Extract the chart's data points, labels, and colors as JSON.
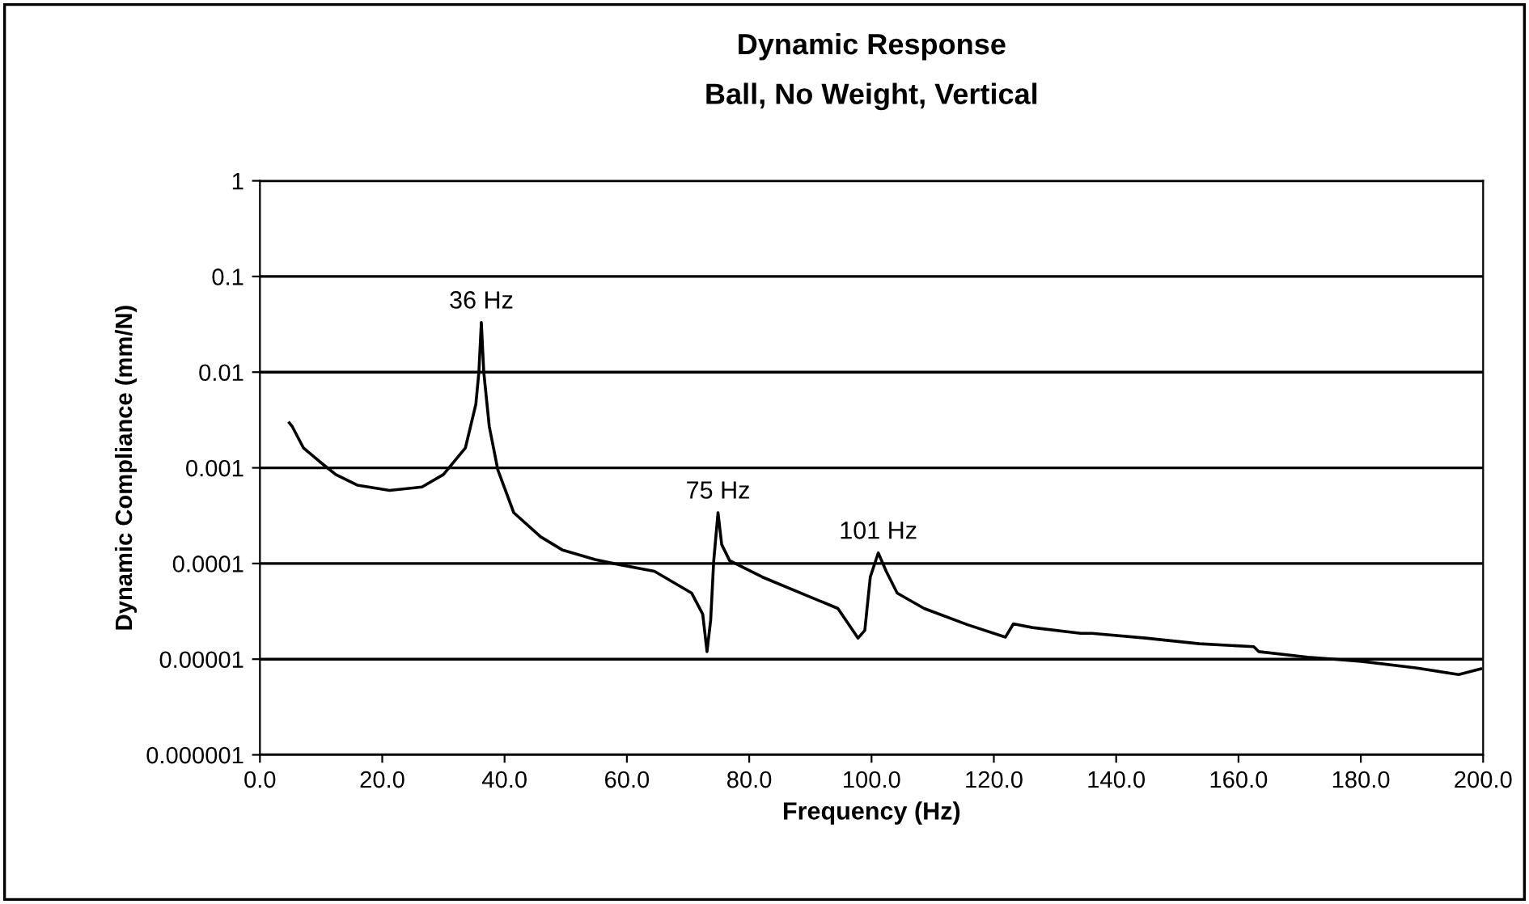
{
  "chart_data": {
    "type": "line",
    "title": "Dynamic Response",
    "subtitle": "Ball, No Weight, Vertical",
    "xlabel": "Frequency (Hz)",
    "ylabel": "Dynamic Compliance (mm/N)",
    "log": "y",
    "grid": "y",
    "marker": "none",
    "line_style": "solid",
    "xlim": [
      0,
      200
    ],
    "ylim": [
      1e-06,
      1
    ],
    "xticks": [
      {
        "value": 0,
        "label": "0.0"
      },
      {
        "value": 20,
        "label": "20.0"
      },
      {
        "value": 40,
        "label": "40.0"
      },
      {
        "value": 60,
        "label": "60.0"
      },
      {
        "value": 80,
        "label": "80.0"
      },
      {
        "value": 100,
        "label": "100.0"
      },
      {
        "value": 120,
        "label": "120.0"
      },
      {
        "value": 140,
        "label": "140.0"
      },
      {
        "value": 160,
        "label": "160.0"
      },
      {
        "value": 180,
        "label": "180.0"
      },
      {
        "value": 200,
        "label": "200.0"
      }
    ],
    "yticks": [
      {
        "value": 1e-06,
        "label": "0.000001"
      },
      {
        "value": 1e-05,
        "label": "0.00001"
      },
      {
        "value": 0.0001,
        "label": "0.0001"
      },
      {
        "value": 0.001,
        "label": "0.001"
      },
      {
        "value": 0.01,
        "label": "0.01"
      },
      {
        "value": 0.1,
        "label": "0.1"
      },
      1
    ],
    "series": [
      {
        "color": "#000000",
        "x": [
          4.8,
          5.3,
          7.1,
          9.7,
          12.4,
          15.9,
          21.2,
          26.5,
          30.0,
          33.6,
          35.3,
          35.8,
          36.2,
          36.6,
          37.5,
          38.9,
          41.5,
          45.9,
          49.5,
          54.8,
          57.8,
          64.5,
          70.6,
          72.4,
          73.1,
          73.7,
          74.2,
          74.9,
          75.5,
          76.8,
          82.1,
          89.2,
          94.5,
          97.8,
          98.9,
          99.8,
          101.1,
          102.4,
          104.2,
          108.6,
          115.7,
          121.9,
          123.2,
          126.3,
          134.2,
          136.0,
          144.8,
          153.6,
          162.5,
          163.3,
          171.3,
          180.1,
          189.0,
          196.0,
          199.6
        ],
        "values": [
          0.00295,
          0.00269,
          0.00162,
          0.00117,
          0.00085,
          0.00066,
          0.00058,
          0.00063,
          0.00085,
          0.00162,
          0.0046,
          0.01,
          0.033,
          0.01,
          0.0027,
          0.00095,
          0.00034,
          0.00019,
          0.000138,
          0.00011,
          0.0001,
          8.3e-05,
          4.9e-05,
          2.95e-05,
          1.2e-05,
          2.57e-05,
          0.000107,
          0.00034,
          0.000158,
          0.000107,
          7.24e-05,
          4.68e-05,
          3.39e-05,
          1.66e-05,
          2e-05,
          7.24e-05,
          0.000129,
          8.3e-05,
          4.9e-05,
          3.39e-05,
          2.29e-05,
          1.7e-05,
          2.34e-05,
          2.14e-05,
          1.86e-05,
          1.86e-05,
          1.66e-05,
          1.45e-05,
          1.35e-05,
          1.2e-05,
          1.05e-05,
          9.5e-06,
          8.1e-06,
          6.9e-06,
          7.9e-06
        ]
      }
    ],
    "annotations": [
      {
        "text": "36 Hz",
        "x": 36.2,
        "y": 0.033
      },
      {
        "text": "75 Hz",
        "x": 74.9,
        "y": 0.00034
      },
      {
        "text": "101 Hz",
        "x": 101.1,
        "y": 0.000129
      }
    ]
  }
}
